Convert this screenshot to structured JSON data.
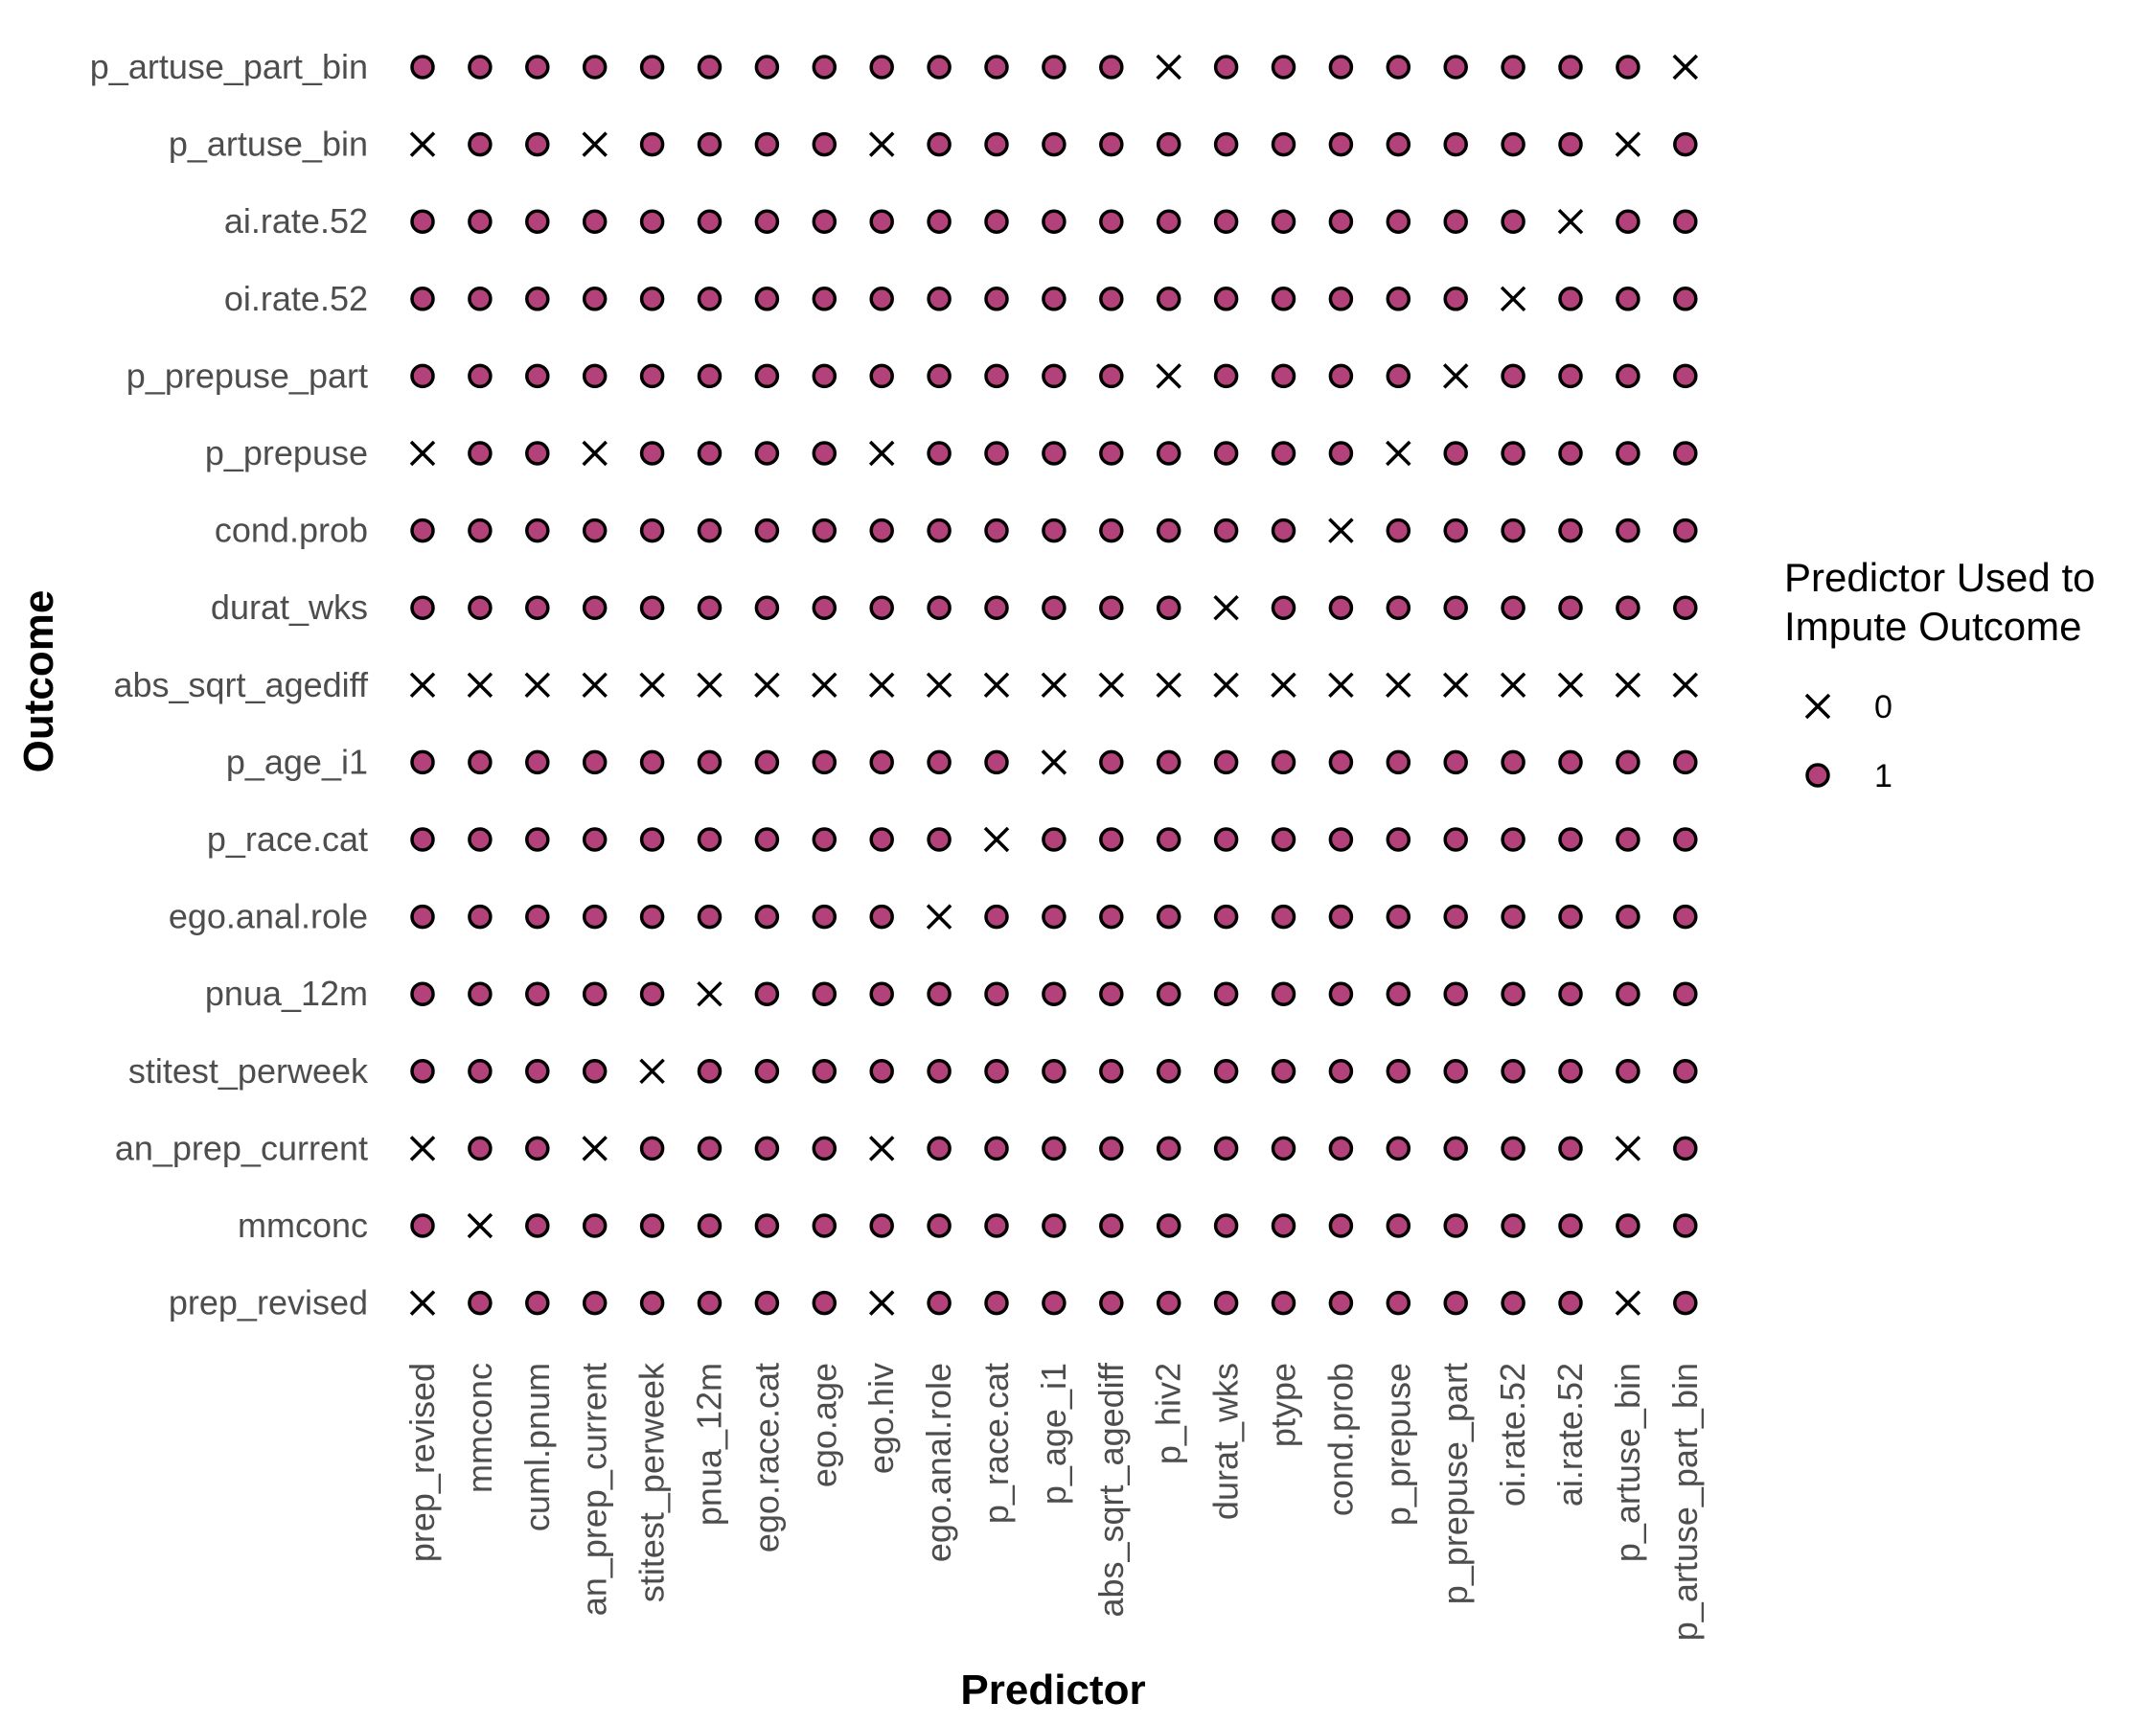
{
  "chart_data": {
    "type": "scatter",
    "xlabel": "Predictor",
    "ylabel": "Outcome",
    "x_categories": [
      "prep_revised",
      "mmconc",
      "cuml.pnum",
      "an_prep_current",
      "stitest_perweek",
      "pnua_12m",
      "ego.race.cat",
      "ego.age",
      "ego.hiv",
      "ego.anal.role",
      "p_race.cat",
      "p_age_i1",
      "abs_sqrt_agediff",
      "p_hiv2",
      "durat_wks",
      "ptype",
      "cond.prob",
      "p_prepuse",
      "p_prepuse_part",
      "oi.rate.52",
      "ai.rate.52",
      "p_artuse_bin",
      "p_artuse_part_bin"
    ],
    "y_categories": [
      "p_artuse_part_bin",
      "p_artuse_bin",
      "ai.rate.52",
      "oi.rate.52",
      "p_prepuse_part",
      "p_prepuse",
      "cond.prob",
      "durat_wks",
      "abs_sqrt_agediff",
      "p_age_i1",
      "p_race.cat",
      "ego.anal.role",
      "pnua_12m",
      "stitest_perweek",
      "an_prep_current",
      "mmconc",
      "prep_revised"
    ],
    "values": [
      [
        1,
        1,
        1,
        1,
        1,
        1,
        1,
        1,
        1,
        1,
        1,
        1,
        1,
        0,
        1,
        1,
        1,
        1,
        1,
        1,
        1,
        1,
        0
      ],
      [
        0,
        1,
        1,
        0,
        1,
        1,
        1,
        1,
        0,
        1,
        1,
        1,
        1,
        1,
        1,
        1,
        1,
        1,
        1,
        1,
        1,
        0,
        1
      ],
      [
        1,
        1,
        1,
        1,
        1,
        1,
        1,
        1,
        1,
        1,
        1,
        1,
        1,
        1,
        1,
        1,
        1,
        1,
        1,
        1,
        0,
        1,
        1
      ],
      [
        1,
        1,
        1,
        1,
        1,
        1,
        1,
        1,
        1,
        1,
        1,
        1,
        1,
        1,
        1,
        1,
        1,
        1,
        1,
        0,
        1,
        1,
        1
      ],
      [
        1,
        1,
        1,
        1,
        1,
        1,
        1,
        1,
        1,
        1,
        1,
        1,
        1,
        0,
        1,
        1,
        1,
        1,
        0,
        1,
        1,
        1,
        1
      ],
      [
        0,
        1,
        1,
        0,
        1,
        1,
        1,
        1,
        0,
        1,
        1,
        1,
        1,
        1,
        1,
        1,
        1,
        0,
        1,
        1,
        1,
        1,
        1
      ],
      [
        1,
        1,
        1,
        1,
        1,
        1,
        1,
        1,
        1,
        1,
        1,
        1,
        1,
        1,
        1,
        1,
        0,
        1,
        1,
        1,
        1,
        1,
        1
      ],
      [
        1,
        1,
        1,
        1,
        1,
        1,
        1,
        1,
        1,
        1,
        1,
        1,
        1,
        1,
        0,
        1,
        1,
        1,
        1,
        1,
        1,
        1,
        1
      ],
      [
        0,
        0,
        0,
        0,
        0,
        0,
        0,
        0,
        0,
        0,
        0,
        0,
        0,
        0,
        0,
        0,
        0,
        0,
        0,
        0,
        0,
        0,
        0
      ],
      [
        1,
        1,
        1,
        1,
        1,
        1,
        1,
        1,
        1,
        1,
        1,
        0,
        1,
        1,
        1,
        1,
        1,
        1,
        1,
        1,
        1,
        1,
        1
      ],
      [
        1,
        1,
        1,
        1,
        1,
        1,
        1,
        1,
        1,
        1,
        0,
        1,
        1,
        1,
        1,
        1,
        1,
        1,
        1,
        1,
        1,
        1,
        1
      ],
      [
        1,
        1,
        1,
        1,
        1,
        1,
        1,
        1,
        1,
        0,
        1,
        1,
        1,
        1,
        1,
        1,
        1,
        1,
        1,
        1,
        1,
        1,
        1
      ],
      [
        1,
        1,
        1,
        1,
        1,
        0,
        1,
        1,
        1,
        1,
        1,
        1,
        1,
        1,
        1,
        1,
        1,
        1,
        1,
        1,
        1,
        1,
        1
      ],
      [
        1,
        1,
        1,
        1,
        0,
        1,
        1,
        1,
        1,
        1,
        1,
        1,
        1,
        1,
        1,
        1,
        1,
        1,
        1,
        1,
        1,
        1,
        1
      ],
      [
        0,
        1,
        1,
        0,
        1,
        1,
        1,
        1,
        0,
        1,
        1,
        1,
        1,
        1,
        1,
        1,
        1,
        1,
        1,
        1,
        1,
        0,
        1
      ],
      [
        1,
        0,
        1,
        1,
        1,
        1,
        1,
        1,
        1,
        1,
        1,
        1,
        1,
        1,
        1,
        1,
        1,
        1,
        1,
        1,
        1,
        1,
        1
      ],
      [
        0,
        1,
        1,
        1,
        1,
        1,
        1,
        1,
        0,
        1,
        1,
        1,
        1,
        1,
        1,
        1,
        1,
        1,
        1,
        1,
        1,
        0,
        1
      ]
    ],
    "legend": {
      "title_line1": "Predictor Used to",
      "title_line2": "Impute Outcome",
      "entries": [
        {
          "label": "0",
          "shape": "x-mark"
        },
        {
          "label": "1",
          "shape": "filled-circle"
        }
      ],
      "placement": "right"
    },
    "colors": {
      "point_fill": "#b3427a",
      "point_stroke": "#000000",
      "cross": "#000000"
    },
    "grid": false
  }
}
